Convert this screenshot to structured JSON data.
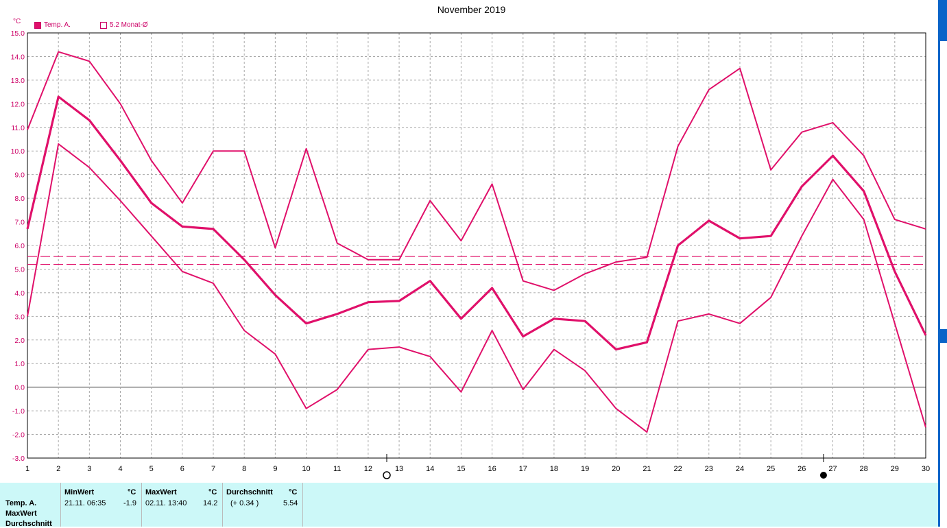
{
  "chart_data": {
    "type": "line",
    "title": "November 2019",
    "unit_label": "°C",
    "ylim": [
      -3.0,
      15.0
    ],
    "yticks": [
      "15.0",
      "14.0",
      "13.0",
      "12.0",
      "11.0",
      "10.0",
      "9.0",
      "8.0",
      "7.0",
      "6.0",
      "5.0",
      "4.0",
      "3.0",
      "2.0",
      "1.0",
      "0.0",
      "-1.0",
      "-2.0",
      "-3.0"
    ],
    "x": [
      1,
      2,
      3,
      4,
      5,
      6,
      7,
      8,
      9,
      10,
      11,
      12,
      13,
      14,
      15,
      16,
      17,
      18,
      19,
      20,
      21,
      22,
      23,
      24,
      25,
      26,
      27,
      28,
      29,
      30
    ],
    "legend": [
      {
        "label": "Temp. A.",
        "filled": true
      },
      {
        "label": "5.2 Monat-Ø",
        "filled": false
      }
    ],
    "series": [
      {
        "role": "max",
        "values": [
          10.9,
          14.2,
          13.8,
          12.0,
          9.6,
          7.8,
          10.0,
          10.0,
          5.9,
          10.1,
          6.1,
          5.4,
          5.4,
          7.9,
          6.2,
          8.6,
          4.5,
          4.1,
          4.8,
          5.3,
          5.5,
          10.2,
          12.6,
          13.5,
          9.2,
          10.8,
          11.2,
          9.8,
          7.1,
          6.7
        ]
      },
      {
        "role": "mean",
        "values": [
          6.7,
          12.3,
          11.3,
          9.6,
          7.8,
          6.8,
          6.7,
          5.4,
          3.9,
          2.7,
          3.1,
          3.6,
          3.65,
          4.5,
          2.9,
          4.2,
          2.15,
          2.9,
          2.8,
          1.6,
          1.9,
          6.0,
          7.05,
          6.3,
          6.4,
          8.5,
          9.8,
          8.3,
          4.9,
          2.2
        ]
      },
      {
        "role": "min",
        "values": [
          3.0,
          10.3,
          9.3,
          7.9,
          6.4,
          4.9,
          4.4,
          2.4,
          1.4,
          -0.9,
          -0.1,
          1.6,
          1.7,
          1.3,
          -0.2,
          2.4,
          -0.1,
          1.6,
          0.7,
          -0.9,
          -1.9,
          2.8,
          3.1,
          2.7,
          3.8,
          6.4,
          8.8,
          7.1,
          2.7,
          -1.7
        ]
      }
    ],
    "reference_lines": [
      {
        "role": "monthly_mean",
        "value": 5.54
      },
      {
        "role": "long_term_mean",
        "value": 5.2
      }
    ],
    "moon_phases": [
      {
        "day": 12.6,
        "phase": "full"
      },
      {
        "day": 26.7,
        "phase": "new"
      }
    ],
    "colors": {
      "series": "#e0106a",
      "grid": "#a8a8a8",
      "zero": "#808080",
      "text": "#cc0066"
    },
    "grid": true
  },
  "stats": {
    "row_labels": [
      "Temp. A.",
      "MaxWert",
      "Durchschnitt"
    ],
    "min": {
      "header": "MinWert",
      "unit": "°C",
      "when": "21.11.  06:35",
      "value": "-1.9"
    },
    "max": {
      "header": "MaxWert",
      "unit": "°C",
      "when": "02.11.  13:40",
      "value": "14.2"
    },
    "avg": {
      "header": "Durchschnitt",
      "unit": "°C",
      "delta": "(+ 0.34 )",
      "value": "5.54"
    }
  }
}
